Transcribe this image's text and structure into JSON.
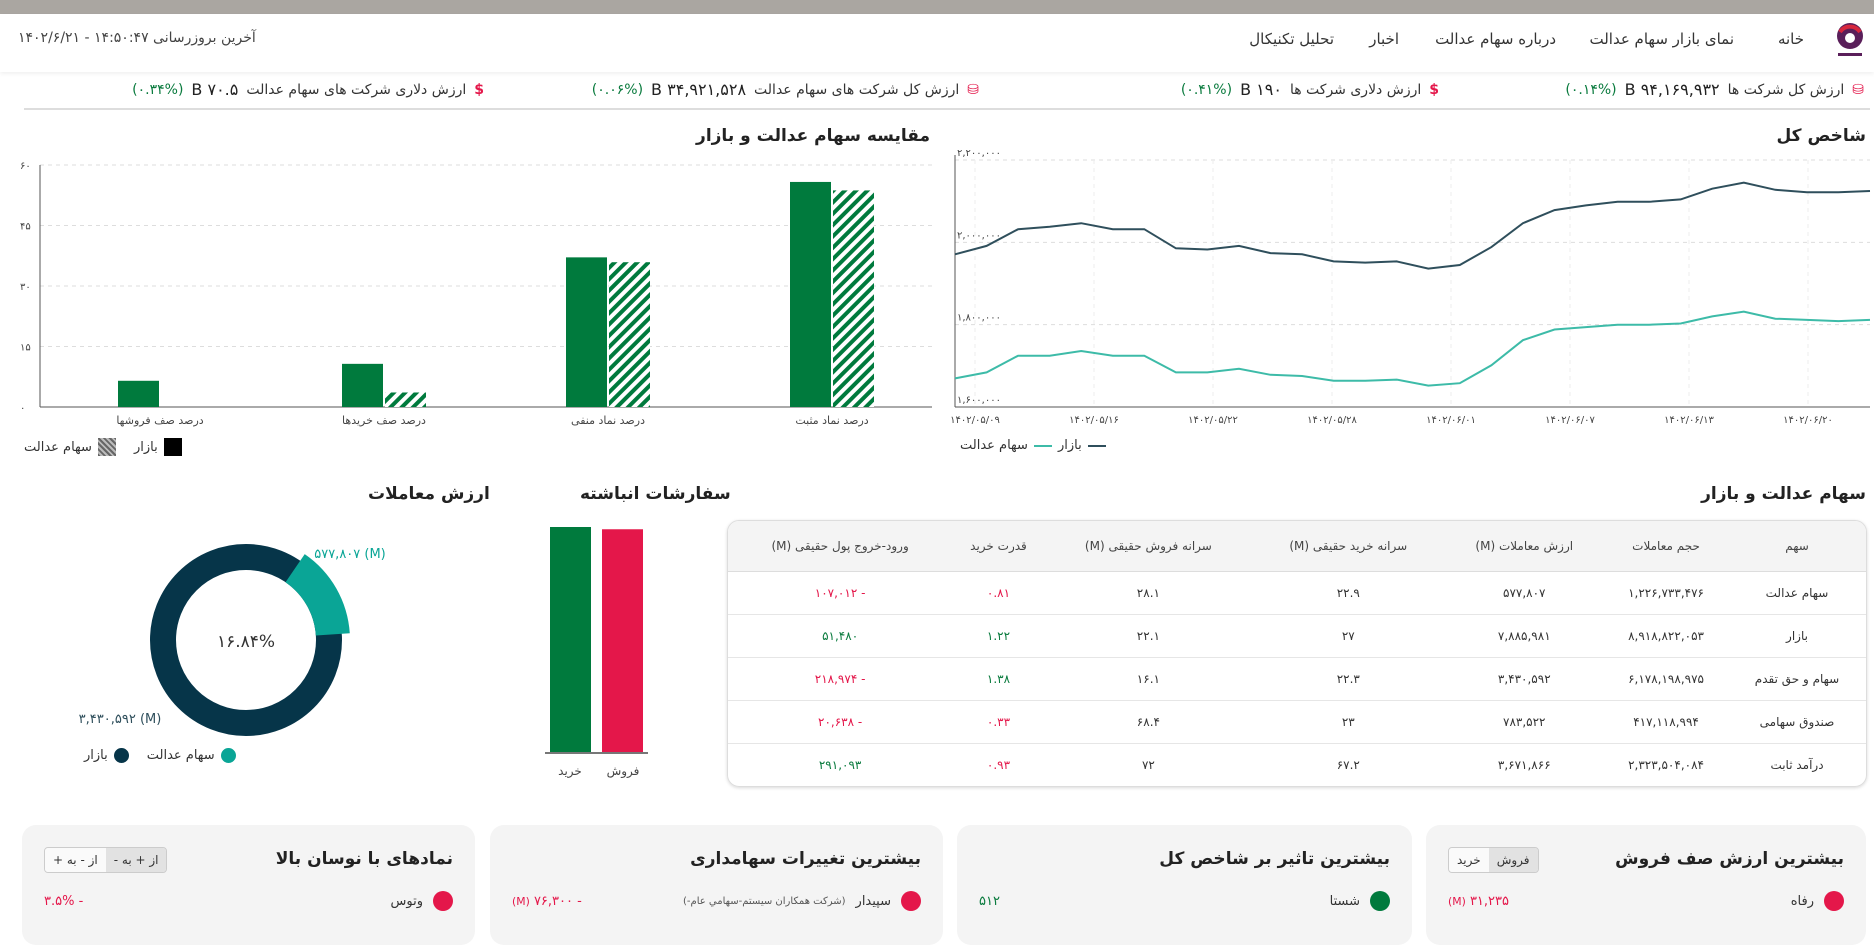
{
  "header": {
    "nav": [
      "خانه",
      "نمای بازار سهام عدالت",
      "درباره سهام عدالت",
      "اخبار",
      "تحلیل تکنیکال"
    ],
    "last_update": "آخرین بروزرسانی ۱۴:۵۰:۴۷ - ۱۴۰۲/۶/۲۱"
  },
  "stats": [
    {
      "label": "ارزش کل شرکت ها",
      "value": "۹۴,۱۶۹,۹۳۲ B",
      "pct": "(۰.۱۴%)",
      "icon": "database-icon"
    },
    {
      "label": "ارزش دلاری شرکت ها",
      "value": "۱۹۰ B",
      "pct": "(۰.۴۱%)",
      "icon": "dollar-icon"
    },
    {
      "label": "ارزش کل شرکت های سهام عدالت",
      "value": "۳۴,۹۲۱,۵۲۸ B",
      "pct": "(۰.۰۶%)",
      "icon": "database-icon"
    },
    {
      "label": "ارزش دلاری شرکت های سهام عدالت",
      "value": "۷۰.۵ B",
      "pct": "(۰.۳۴%)",
      "icon": "dollar-icon"
    }
  ],
  "colors": {
    "green": "#007a3d",
    "red": "#e4174a",
    "navy": "#063549",
    "teal": "#0aa596",
    "line_market": "#2f4f5c",
    "line_equity": "#3dbba8"
  },
  "chart_data": [
    {
      "type": "line",
      "title": "شاخص کل",
      "ylim": [
        1600000,
        2200000
      ],
      "yticks": [
        "۱,۶۰۰,۰۰۰",
        "۱,۸۰۰,۰۰۰",
        "۲,۰۰۰,۰۰۰",
        "۲,۲۰۰,۰۰۰"
      ],
      "xticks": [
        "۱۴۰۲/۰۵/۰۹",
        "۱۴۰۲/۰۵/۱۶",
        "۱۴۰۲/۰۵/۲۲",
        "۱۴۰۲/۰۵/۲۸",
        "۱۴۰۲/۰۶/۰۱",
        "۱۴۰۲/۰۶/۰۷",
        "۱۴۰۲/۰۶/۱۳",
        "۱۴۰۲/۰۶/۲۰"
      ],
      "legend": [
        "بازار",
        "سهام عدالت"
      ],
      "series": [
        {
          "name": "بازار",
          "values": [
            1971000,
            1991300,
            2031900,
            2037700,
            2046400,
            2031900,
            2031900,
            1985500,
            1982600,
            1991300,
            1973900,
            1971000,
            1953600,
            1950700,
            1953600,
            1936200,
            1944900,
            1988400,
            2046400,
            2078200,
            2089800,
            2098500,
            2098500,
            2104300,
            2130400,
            2144900,
            2127500,
            2121700,
            2121700,
            2124600
          ]
        },
        {
          "name": "سهام عدالت",
          "values": [
            1669500,
            1684000,
            1724600,
            1724600,
            1736000,
            1724600,
            1724600,
            1684000,
            1684000,
            1692700,
            1678200,
            1675300,
            1663700,
            1663700,
            1666600,
            1652100,
            1657900,
            1701400,
            1762300,
            1788300,
            1794100,
            1799900,
            1799900,
            1802800,
            1820200,
            1831800,
            1814400,
            1811500,
            1808600,
            1811500
          ]
        }
      ]
    },
    {
      "type": "bar",
      "title": "مقایسه سهام عدالت و بازار",
      "ylim": [
        0,
        60
      ],
      "yticks": [
        "۰",
        "۱۵",
        "۳۰",
        "۴۵",
        "۶۰"
      ],
      "categories": [
        "درصد نماد مثبت",
        "درصد نماد منفی",
        "درصد صف خریدها",
        "درصد صف فروشها"
      ],
      "legend": [
        "بازار",
        "سهام عدالت"
      ],
      "series": [
        {
          "name": "بازار",
          "values": [
            55.8,
            37.1,
            10.7,
            6.5
          ]
        },
        {
          "name": "سهام عدالت",
          "values": [
            53.7,
            35.9,
            3.6,
            0
          ]
        }
      ]
    },
    {
      "type": "bar",
      "title": "سفارشات انباشته",
      "categories": [
        "خرید",
        "فروش"
      ],
      "values": [
        100,
        99
      ]
    },
    {
      "type": "pie",
      "title": "ارزش معاملات",
      "center_label": "۱۶.۸۴%",
      "legend": [
        "سهام عدالت",
        "بازار"
      ],
      "values": [
        577807,
        3430592
      ],
      "labels": [
        "۵۷۷,۸۰۷ (M)",
        "۳,۴۳۰,۵۹۲ (M)"
      ]
    }
  ],
  "table": {
    "title": "سهام عدالت و بازار",
    "headers": [
      "سهم",
      "حجم معاملات",
      "ارزش معاملات (M)",
      "سرانه خرید حقیقی (M)",
      "سرانه فروش حقیقی (M)",
      "قدرت خرید",
      "ورود-خروج پول حقیقی (M)"
    ],
    "rows": [
      [
        "سهام عدالت",
        "۱,۲۲۶,۷۳۳,۴۷۶",
        "۵۷۷,۸۰۷",
        "۲۲.۹",
        "۲۸.۱",
        "۰.۸۱",
        "- ۱۰۷,۰۱۲"
      ],
      [
        "بازار",
        "۸,۹۱۸,۸۲۲,۰۵۳",
        "۷,۸۸۵,۹۸۱",
        "۲۷",
        "۲۲.۱",
        "۱.۲۲",
        "۵۱,۴۸۰"
      ],
      [
        "سهام و حق تقدم",
        "۶,۱۷۸,۱۹۸,۹۷۵",
        "۳,۴۳۰,۵۹۲",
        "۲۲.۳",
        "۱۶.۱",
        "۱.۳۸",
        "- ۲۱۸,۹۷۴"
      ],
      [
        "صندوق سهامی",
        "۴۱۷,۱۱۸,۹۹۴",
        "۷۸۳,۵۲۲",
        "۲۳",
        "۶۸.۴",
        "۰.۳۳",
        "- ۲۰,۶۳۸"
      ],
      [
        "درآمد ثابت",
        "۲,۳۲۳,۵۰۴,۰۸۴",
        "۳,۶۷۱,۸۶۶",
        "۶۷.۲",
        "۷۲",
        "۰.۹۳",
        "۲۹۱,۰۹۳"
      ]
    ]
  },
  "cards": [
    {
      "title": "بیشترین ارزش صف فروش",
      "toggle": [
        "فروش",
        "خرید"
      ],
      "item": "رفاه",
      "value": "۳۱,۲۳۵",
      "unit": "(M)",
      "dot": "#e4174a"
    },
    {
      "title": "بیشترین تاثیر بر شاخص کل",
      "item": "شستا",
      "value": "۵۱۲",
      "dot": "#007a3d"
    },
    {
      "title": "بیشترین تغییرات سهامداری",
      "item": "سپیدار",
      "sub": "(شرکت همکاران سیستم-سهامي عام-)",
      "value": "- ۷۶,۳۰۰",
      "unit": "(M)",
      "dot": "#e4174a"
    },
    {
      "title": "نمادهای با نوسان بالا",
      "toggle": [
        "از + به -",
        "از - به +"
      ],
      "item": "وتوس",
      "value": "- ۳.۵%",
      "dot": "#e4174a"
    }
  ]
}
